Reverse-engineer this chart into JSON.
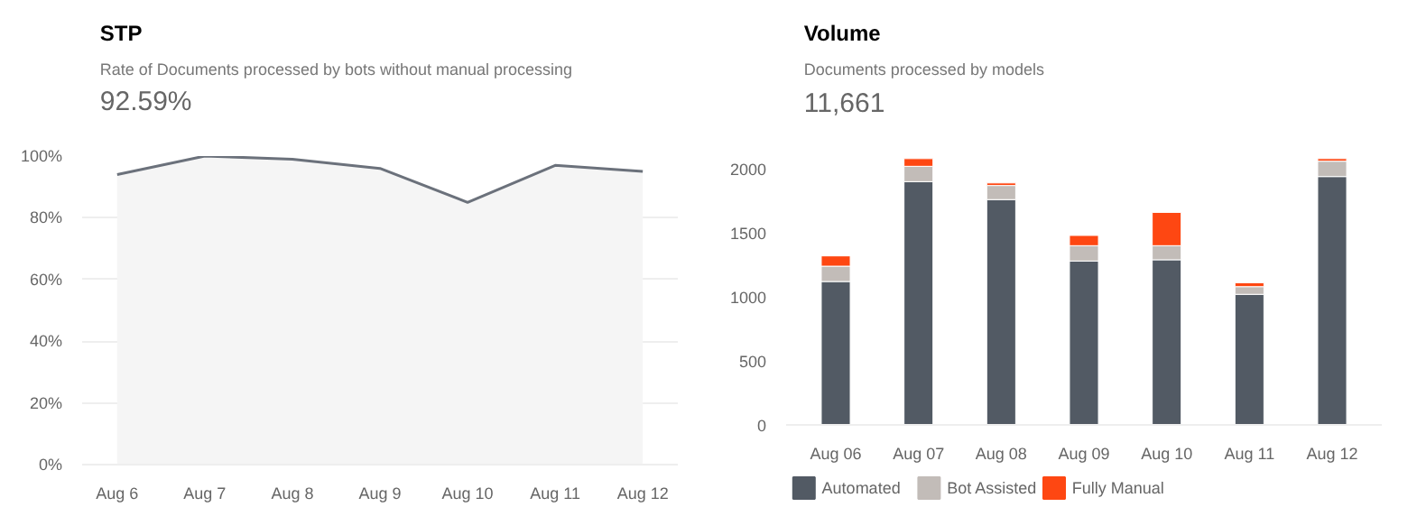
{
  "chart_data": [
    {
      "type": "area",
      "title": "STP",
      "subtitle": "Rate of Documents processed by bots without manual processing",
      "annotations": [
        "92.59%"
      ],
      "categories": [
        "Aug 6",
        "Aug 7",
        "Aug 8",
        "Aug 9",
        "Aug 10",
        "Aug 11",
        "Aug 12"
      ],
      "series": [
        {
          "color": "#6b717b",
          "values": [
            94,
            100,
            99,
            96,
            85,
            97,
            95
          ]
        }
      ],
      "ylim": [
        0,
        100
      ],
      "yticks": [
        {
          "value": 0,
          "label": "0%"
        },
        {
          "value": 20,
          "label": "20%"
        },
        {
          "value": 40,
          "label": "40%"
        },
        {
          "value": 60,
          "label": "60%"
        },
        {
          "value": 80,
          "label": "80%"
        },
        {
          "value": 100,
          "label": "100%"
        }
      ],
      "grid": "y",
      "legend": false
    },
    {
      "type": "bar",
      "stacked": true,
      "title": "Volume",
      "subtitle": "Documents processed by models",
      "annotations": [
        "11,661"
      ],
      "categories": [
        "Aug 06",
        "Aug 07",
        "Aug 08",
        "Aug 09",
        "Aug 10",
        "Aug 11",
        "Aug 12"
      ],
      "series": [
        {
          "name": "Automated",
          "color": "#525a64",
          "values": [
            1120,
            1900,
            1760,
            1280,
            1290,
            1020,
            1940
          ]
        },
        {
          "name": "Bot Assisted",
          "color": "#c2bcb8",
          "values": [
            120,
            120,
            110,
            120,
            110,
            60,
            120
          ]
        },
        {
          "name": "Fully Manual",
          "color": "#fe4712",
          "values": [
            80,
            60,
            20,
            80,
            260,
            30,
            20
          ]
        }
      ],
      "ylim": [
        0,
        2100
      ],
      "yticks": [
        0,
        500,
        1000,
        1500,
        2000
      ],
      "grid": false,
      "legend": "bottom left"
    }
  ]
}
